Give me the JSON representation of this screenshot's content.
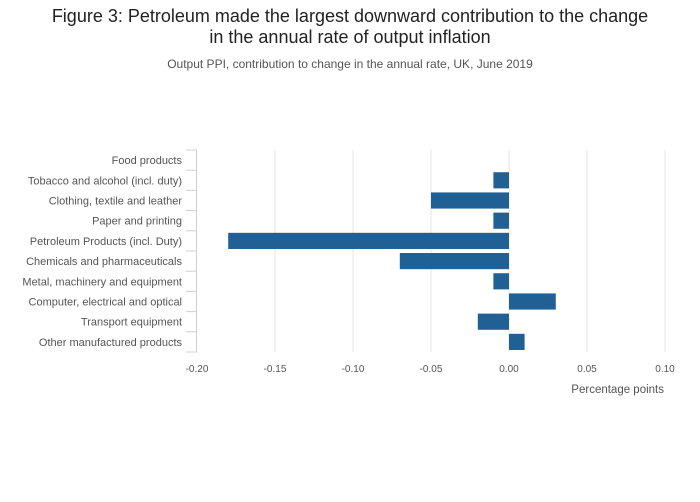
{
  "title_line1": "Figure 3: Petroleum made the largest downward contribution to the change",
  "title_line2": "in the annual rate of output inflation",
  "subtitle": "Output PPI, contribution to change in the annual rate, UK, June 2019",
  "chart_data": {
    "type": "bar",
    "orientation": "horizontal",
    "categories": [
      "Food products",
      "Tobacco and alcohol (incl. duty)",
      "Clothing, textile and leather",
      "Paper and printing",
      "Petroleum Products (incl. Duty)",
      "Chemicals and pharmaceuticals",
      "Metal, machinery and equipment",
      "Computer, electrical and optical",
      "Transport equipment",
      "Other manufactured products"
    ],
    "values": [
      0.0,
      -0.01,
      -0.05,
      -0.01,
      -0.18,
      -0.07,
      -0.01,
      0.03,
      -0.02,
      0.01
    ],
    "xlabel": "Percentage points",
    "xlim": [
      -0.2,
      0.1
    ],
    "xticks": [
      -0.2,
      -0.15,
      -0.1,
      -0.05,
      0.0,
      0.05,
      0.1
    ],
    "xtick_labels": [
      "-0.20",
      "-0.15",
      "-0.10",
      "-0.05",
      "0.00",
      "0.05",
      "0.10"
    ],
    "grid": true,
    "bar_color": "#206095",
    "grid_color": "#e6e6e6"
  }
}
